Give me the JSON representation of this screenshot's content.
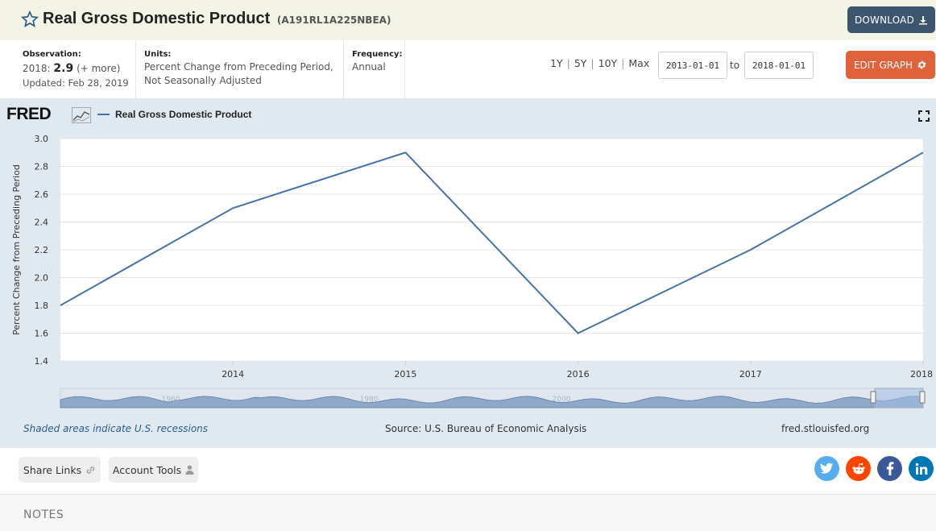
{
  "header": {
    "title": "Real Gross Domestic Product",
    "series_id": "(A191RL1A225NBEA)",
    "download_label": "DOWNLOAD"
  },
  "meta": {
    "observation_label": "Observation:",
    "observation_year": "2018:",
    "observation_value": "2.9",
    "observation_more": "(+ more)",
    "updated": "Updated: Feb 28, 2019",
    "units_label": "Units:",
    "units_line1": "Percent Change from Preceding Period,",
    "units_line2": "Not Seasonally Adjusted",
    "frequency_label": "Frequency:",
    "frequency_value": "Annual"
  },
  "range": {
    "options": [
      "1Y",
      "5Y",
      "10Y",
      "Max"
    ],
    "start": "2013-01-01",
    "to": "to",
    "end": "2018-01-01"
  },
  "edit_label": "EDIT GRAPH",
  "chart_header": {
    "logo": "FRED",
    "legend": "Real Gross Domestic Product"
  },
  "colors": {
    "line": "#4572a7",
    "chart_bg": "#e1e9f0",
    "download": "#3d5670",
    "edit": "#e0623a"
  },
  "chart_data": {
    "type": "line",
    "title": "",
    "xlabel": "",
    "ylabel": "Percent Change from Preceding Period",
    "x": [
      "2013",
      "2014",
      "2015",
      "2016",
      "2017",
      "2018"
    ],
    "series": [
      {
        "name": "Real Gross Domestic Product",
        "values": [
          1.8,
          2.5,
          2.9,
          1.6,
          2.2,
          2.9
        ]
      }
    ],
    "x_tick_labels": [
      "2014",
      "2015",
      "2016",
      "2017",
      "2018"
    ],
    "y_ticks": [
      "1.4",
      "1.6",
      "1.8",
      "2.0",
      "2.2",
      "2.4",
      "2.6",
      "2.8",
      "3.0"
    ],
    "ylim": [
      1.4,
      3.0
    ],
    "grid": true,
    "navigator_labels": [
      "1960",
      "1980",
      "2000"
    ]
  },
  "footer": {
    "recessions": "Shaded areas indicate U.S. recessions",
    "source": "Source: U.S. Bureau of Economic Analysis",
    "site": "fred.stlouisfed.org"
  },
  "share": {
    "share_links": "Share Links",
    "account_tools": "Account Tools",
    "social": [
      {
        "icon": "twitter-icon",
        "color": "#55acee"
      },
      {
        "icon": "reddit-icon",
        "color": "#ff4500"
      },
      {
        "icon": "facebook-icon",
        "color": "#3b5998"
      },
      {
        "icon": "linkedin-icon",
        "color": "#0077b5"
      }
    ]
  },
  "notes": {
    "title": "NOTES"
  }
}
